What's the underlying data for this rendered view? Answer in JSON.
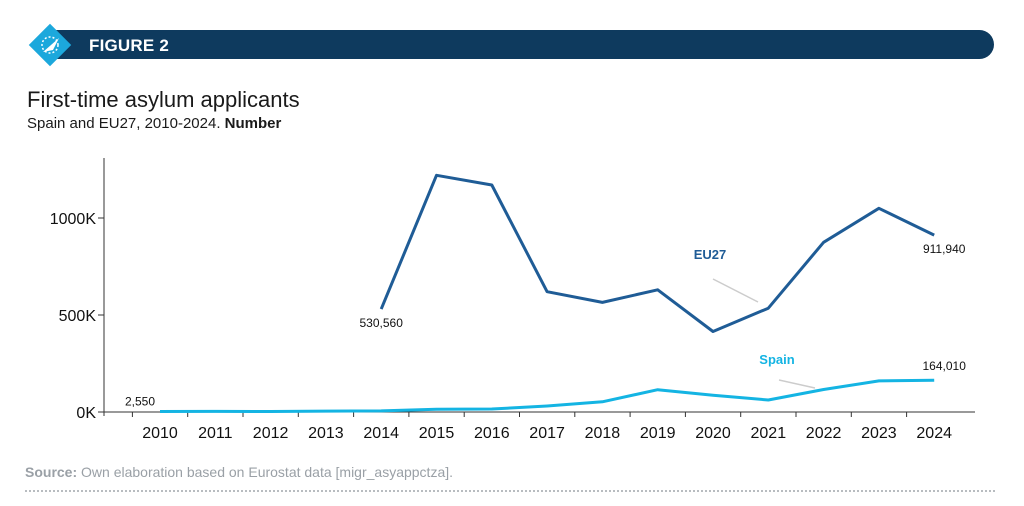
{
  "header": {
    "figure_label": "FIGURE 2"
  },
  "title": "First-time asylum applicants",
  "subtitle": "Spain and EU27, 2010-2024.",
  "subtitle_bold": "Number",
  "source_label": "Source:",
  "source_text": "Own elaboration based on Eurostat data [migr_asyappctza].",
  "colors": {
    "header_bar": "#0e3a5e",
    "eu27": "#1f5c96",
    "spain": "#14b4e3",
    "logo": "#1ca8dc"
  },
  "chart_data": {
    "type": "line",
    "title": "First-time asylum applicants",
    "x": [
      2010,
      2011,
      2012,
      2013,
      2014,
      2015,
      2016,
      2017,
      2018,
      2019,
      2020,
      2021,
      2022,
      2023,
      2024
    ],
    "x_tick_labels": [
      "2010",
      "2011",
      "2012",
      "2013",
      "2014",
      "2015",
      "2016",
      "2017",
      "2018",
      "2019",
      "2020",
      "2021",
      "2022",
      "2023",
      "2024"
    ],
    "y_ticks": [
      0,
      500000,
      1000000
    ],
    "y_tick_labels": [
      "0K",
      "500K",
      "1000K"
    ],
    "ylim": [
      0,
      1300000
    ],
    "grid": false,
    "series": [
      {
        "name": "EU27",
        "values": [
          null,
          null,
          null,
          null,
          530560,
          1220000,
          1170000,
          620000,
          565000,
          630000,
          415000,
          535000,
          875000,
          1050000,
          911940
        ]
      },
      {
        "name": "Spain",
        "values": [
          2550,
          3000,
          2500,
          4500,
          5500,
          14600,
          15600,
          31000,
          52700,
          115200,
          86400,
          62100,
          116100,
          160500,
          164010
        ]
      }
    ],
    "annotations": [
      {
        "series": "Spain",
        "x": 2010,
        "text": "2,550"
      },
      {
        "series": "EU27",
        "x": 2014,
        "text": "530,560"
      },
      {
        "series": "EU27",
        "x": 2024,
        "text": "911,940"
      },
      {
        "series": "Spain",
        "x": 2024,
        "text": "164,010"
      }
    ]
  }
}
